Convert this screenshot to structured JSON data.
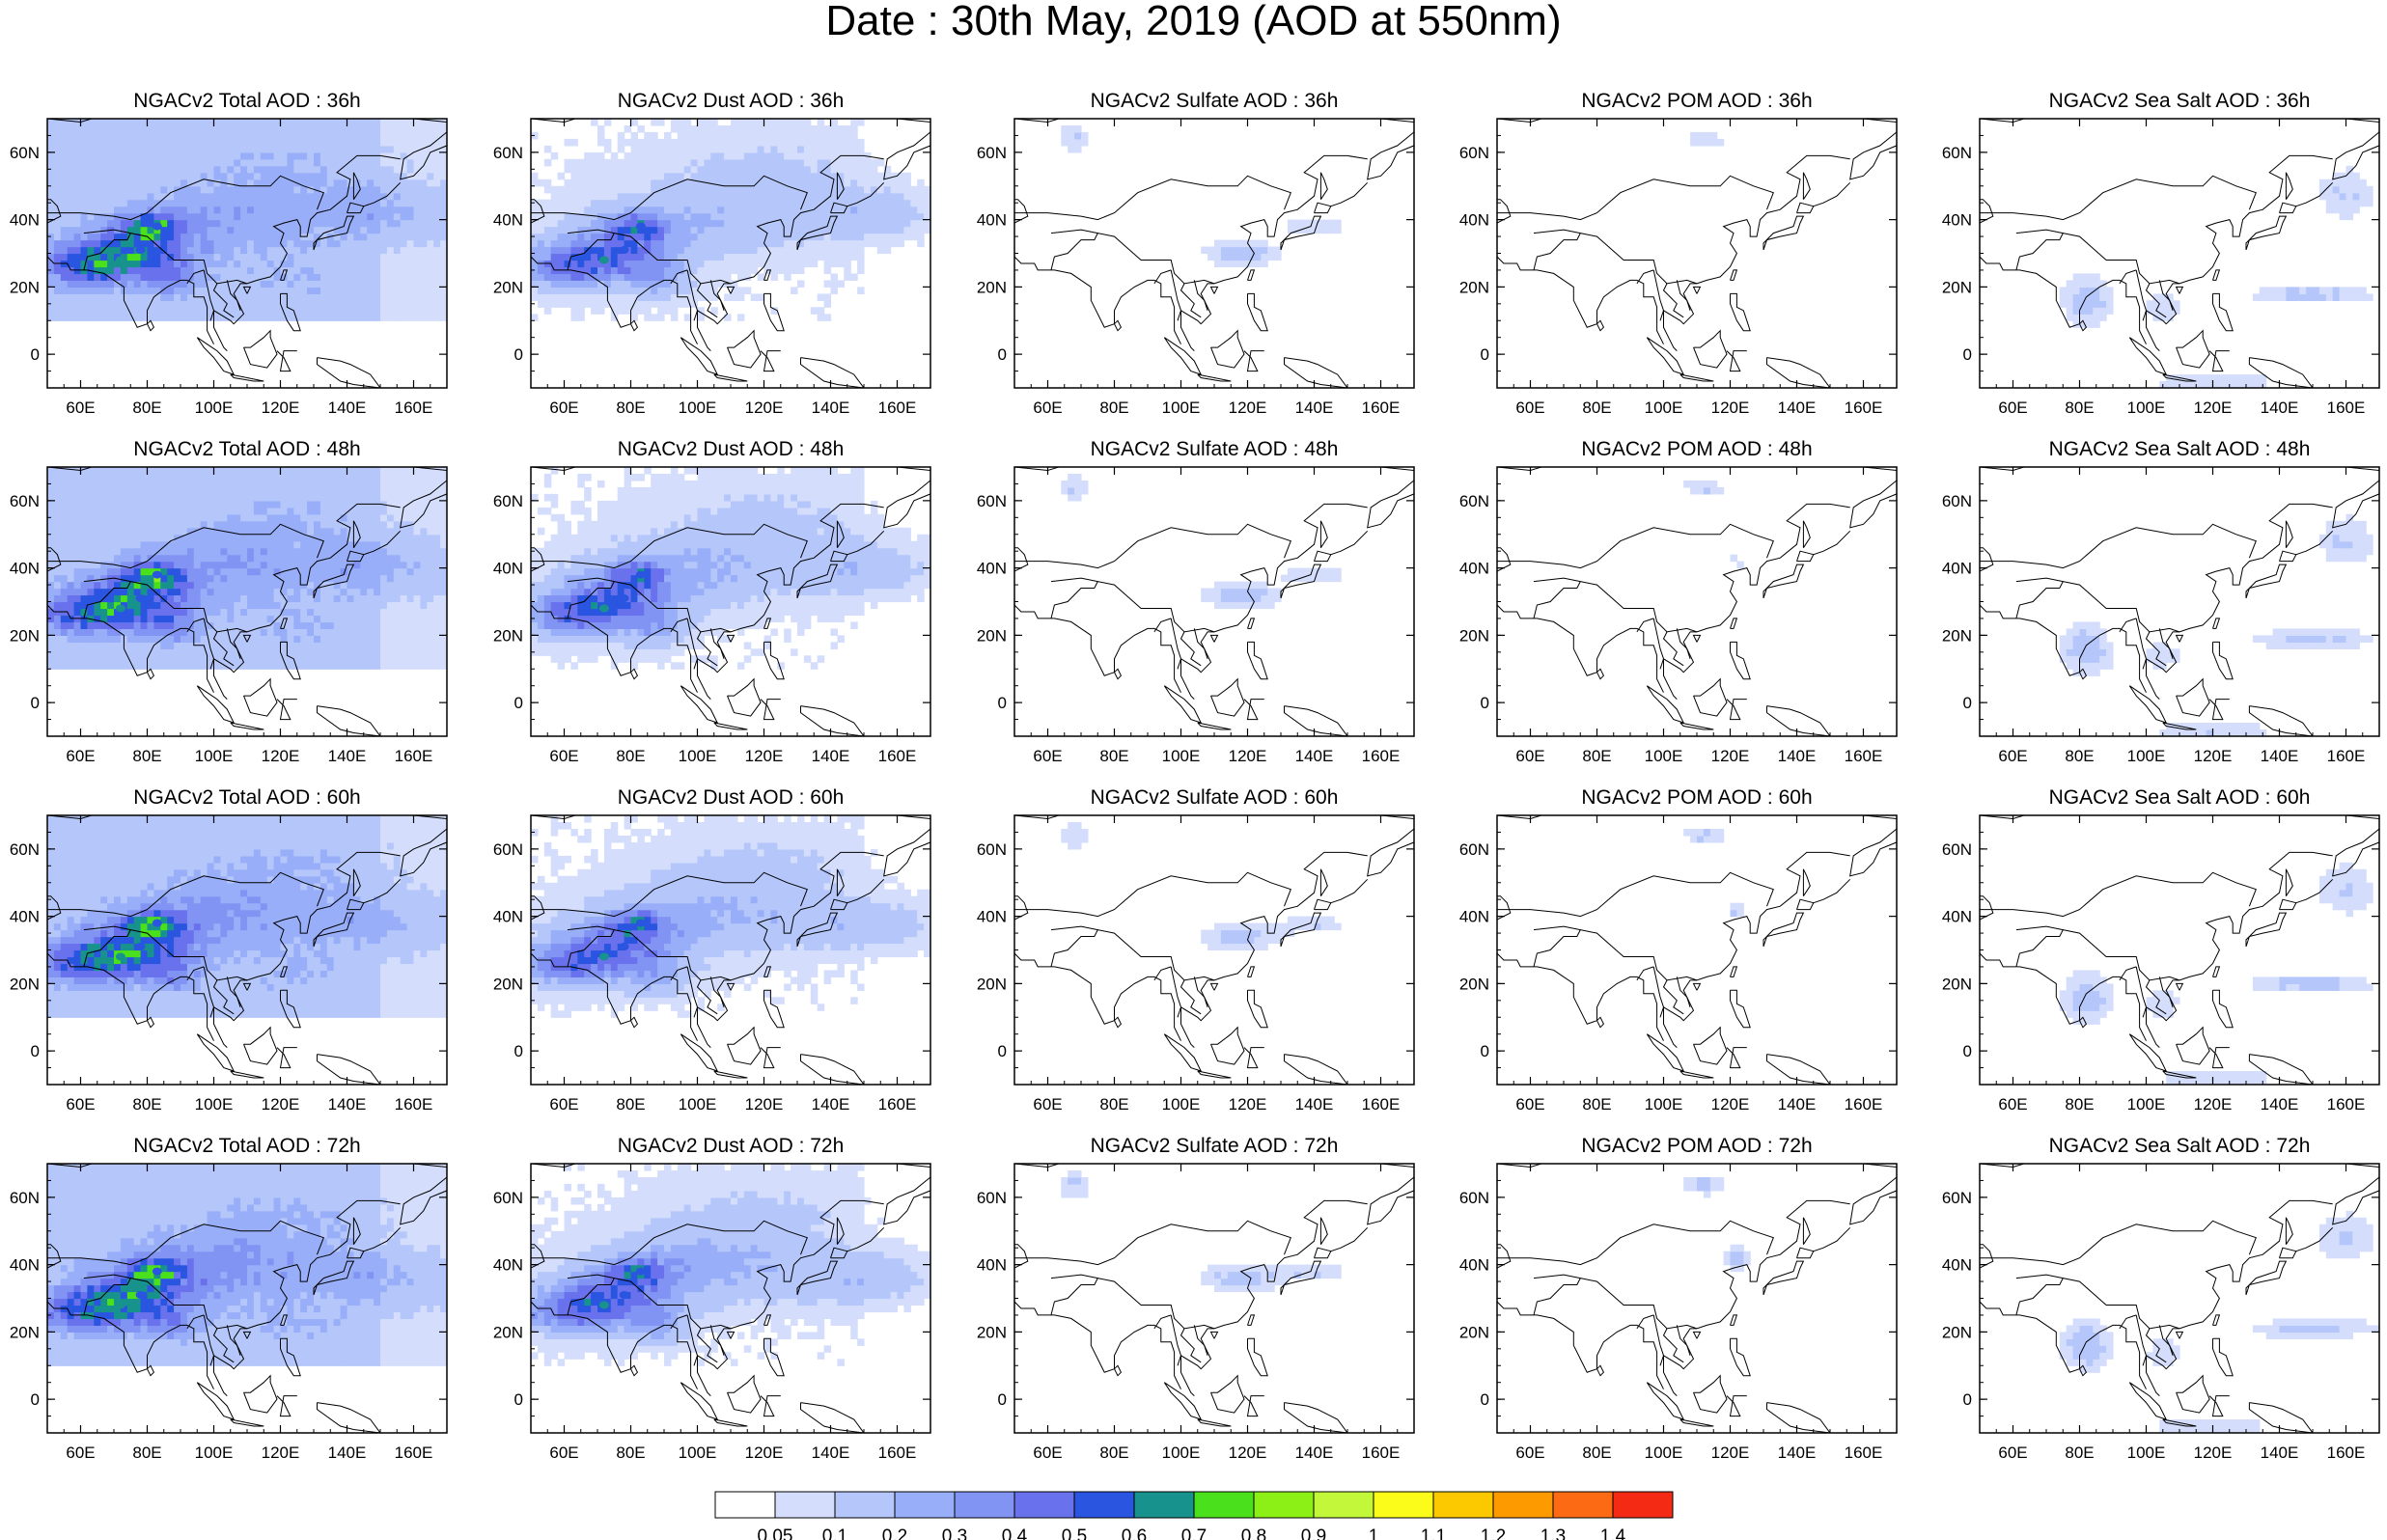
{
  "title": "Date : 30th May, 2019 (AOD at 550nm)",
  "species": [
    "Total",
    "Dust",
    "Sulfate",
    "POM",
    "Sea Salt"
  ],
  "forecast_hours": [
    "36h",
    "48h",
    "60h",
    "72h"
  ],
  "panel_titles": [
    [
      "NGACv2 Total AOD : 36h",
      "NGACv2 Dust AOD : 36h",
      "NGACv2 Sulfate AOD : 36h",
      "NGACv2 POM AOD : 36h",
      "NGACv2 Sea Salt AOD : 36h"
    ],
    [
      "NGACv2 Total AOD : 48h",
      "NGACv2 Dust AOD : 48h",
      "NGACv2 Sulfate AOD : 48h",
      "NGACv2 POM AOD : 48h",
      "NGACv2 Sea Salt AOD : 48h"
    ],
    [
      "NGACv2 Total AOD : 60h",
      "NGACv2 Dust AOD : 60h",
      "NGACv2 Sulfate AOD : 60h",
      "NGACv2 POM AOD : 60h",
      "NGACv2 Sea Salt AOD : 60h"
    ],
    [
      "NGACv2 Total AOD : 72h",
      "NGACv2 Dust AOD : 72h",
      "NGACv2 Sulfate AOD : 72h",
      "NGACv2 POM AOD : 72h",
      "NGACv2 Sea Salt  AOD : 72h"
    ]
  ],
  "map": {
    "lon_range": [
      50,
      170
    ],
    "lat_range": [
      -10,
      70
    ],
    "lon_ticks": [
      60,
      80,
      100,
      120,
      140,
      160
    ],
    "lon_tick_labels": [
      "60E",
      "80E",
      "100E",
      "120E",
      "140E",
      "160E"
    ],
    "lat_ticks": [
      0,
      20,
      40,
      60
    ],
    "lat_tick_labels": [
      "0",
      "20N",
      "40N",
      "60N"
    ]
  },
  "colorbar": {
    "labels": [
      "0.05",
      "0.1",
      "0.2",
      "0.3",
      "0.4",
      "0.5",
      "0.6",
      "0.7",
      "0.8",
      "0.9",
      "1",
      "1.1",
      "1.2",
      "1.3",
      "1.4"
    ],
    "colors": [
      "#ffffff",
      "#d4defc",
      "#b4c6fa",
      "#98aef8",
      "#8294f3",
      "#6972ec",
      "#2a55e0",
      "#17928c",
      "#4be01c",
      "#8cf016",
      "#c3f83a",
      "#fcfc1a",
      "#fcc800",
      "#fc9a00",
      "#fc6a14",
      "#f42a14"
    ]
  }
}
